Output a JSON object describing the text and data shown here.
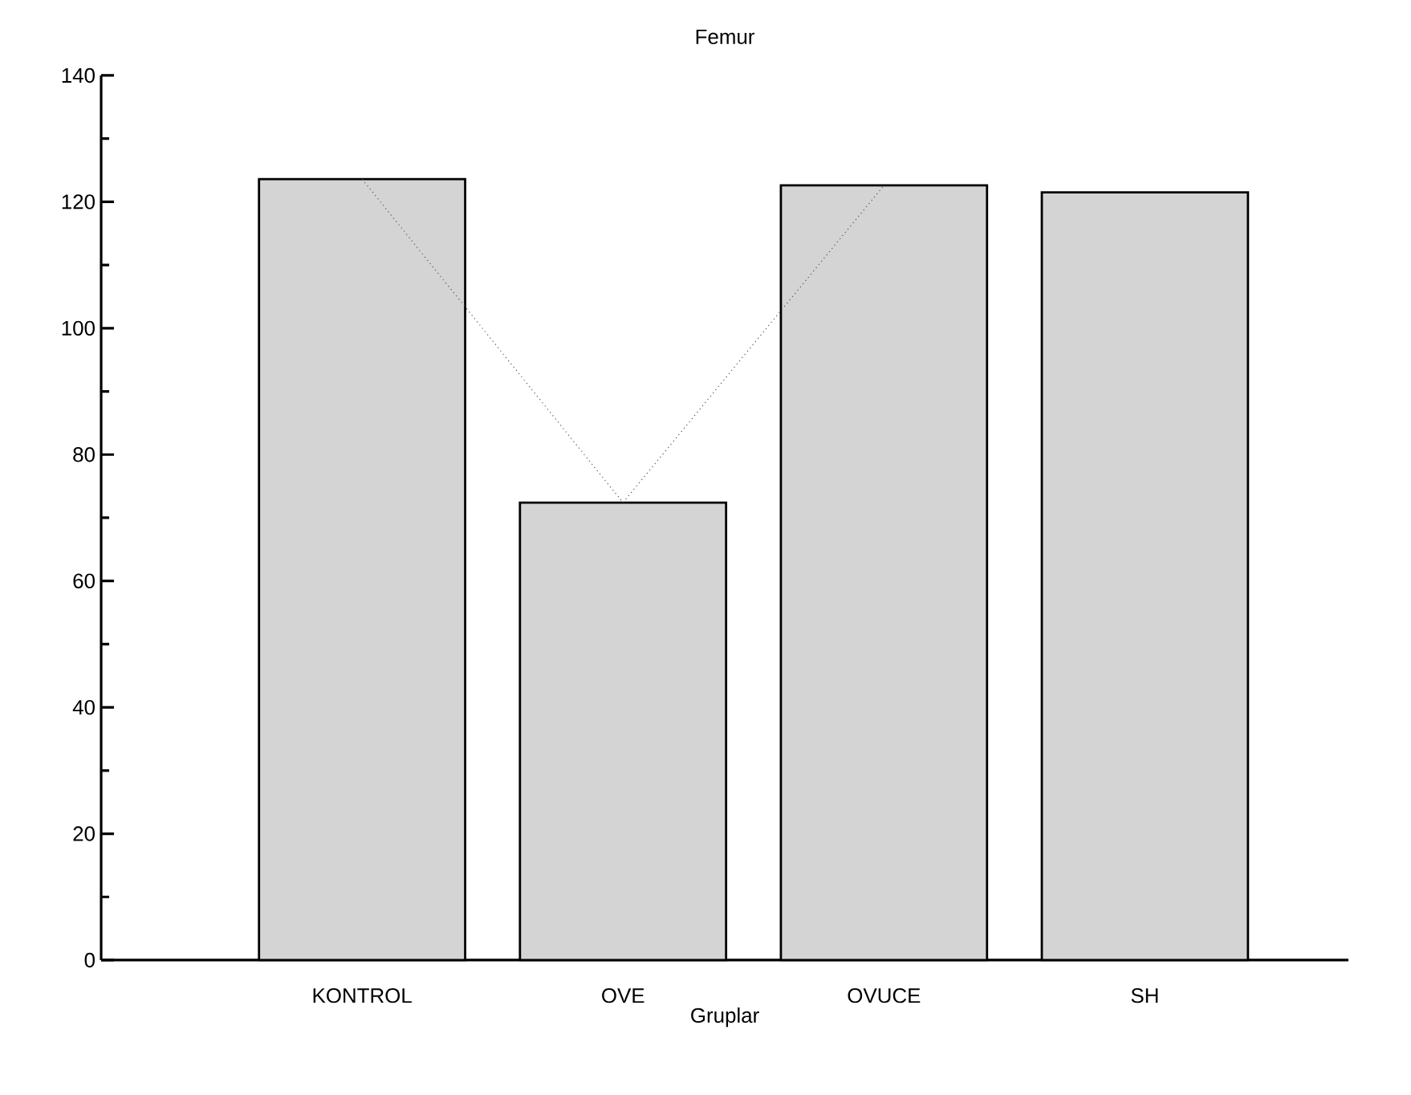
{
  "chart_data": {
    "type": "bar",
    "title": "Femur",
    "xlabel": "Gruplar",
    "categories": [
      "KONTROL",
      "OVE",
      "OVUCE",
      "SH"
    ],
    "series": [
      {
        "color": "#d4d4d4",
        "values": [
          123.6,
          72.4,
          122.6,
          121.5
        ]
      },
      {
        "type": "line",
        "color": "#555555",
        "line_style": "dotted",
        "marker": "none",
        "values": [
          123.6,
          72.4,
          122.6,
          null
        ]
      }
    ],
    "ylim": [
      0,
      140
    ],
    "yticks": [
      0,
      20,
      40,
      60,
      80,
      100,
      120,
      140
    ],
    "grid": false
  }
}
